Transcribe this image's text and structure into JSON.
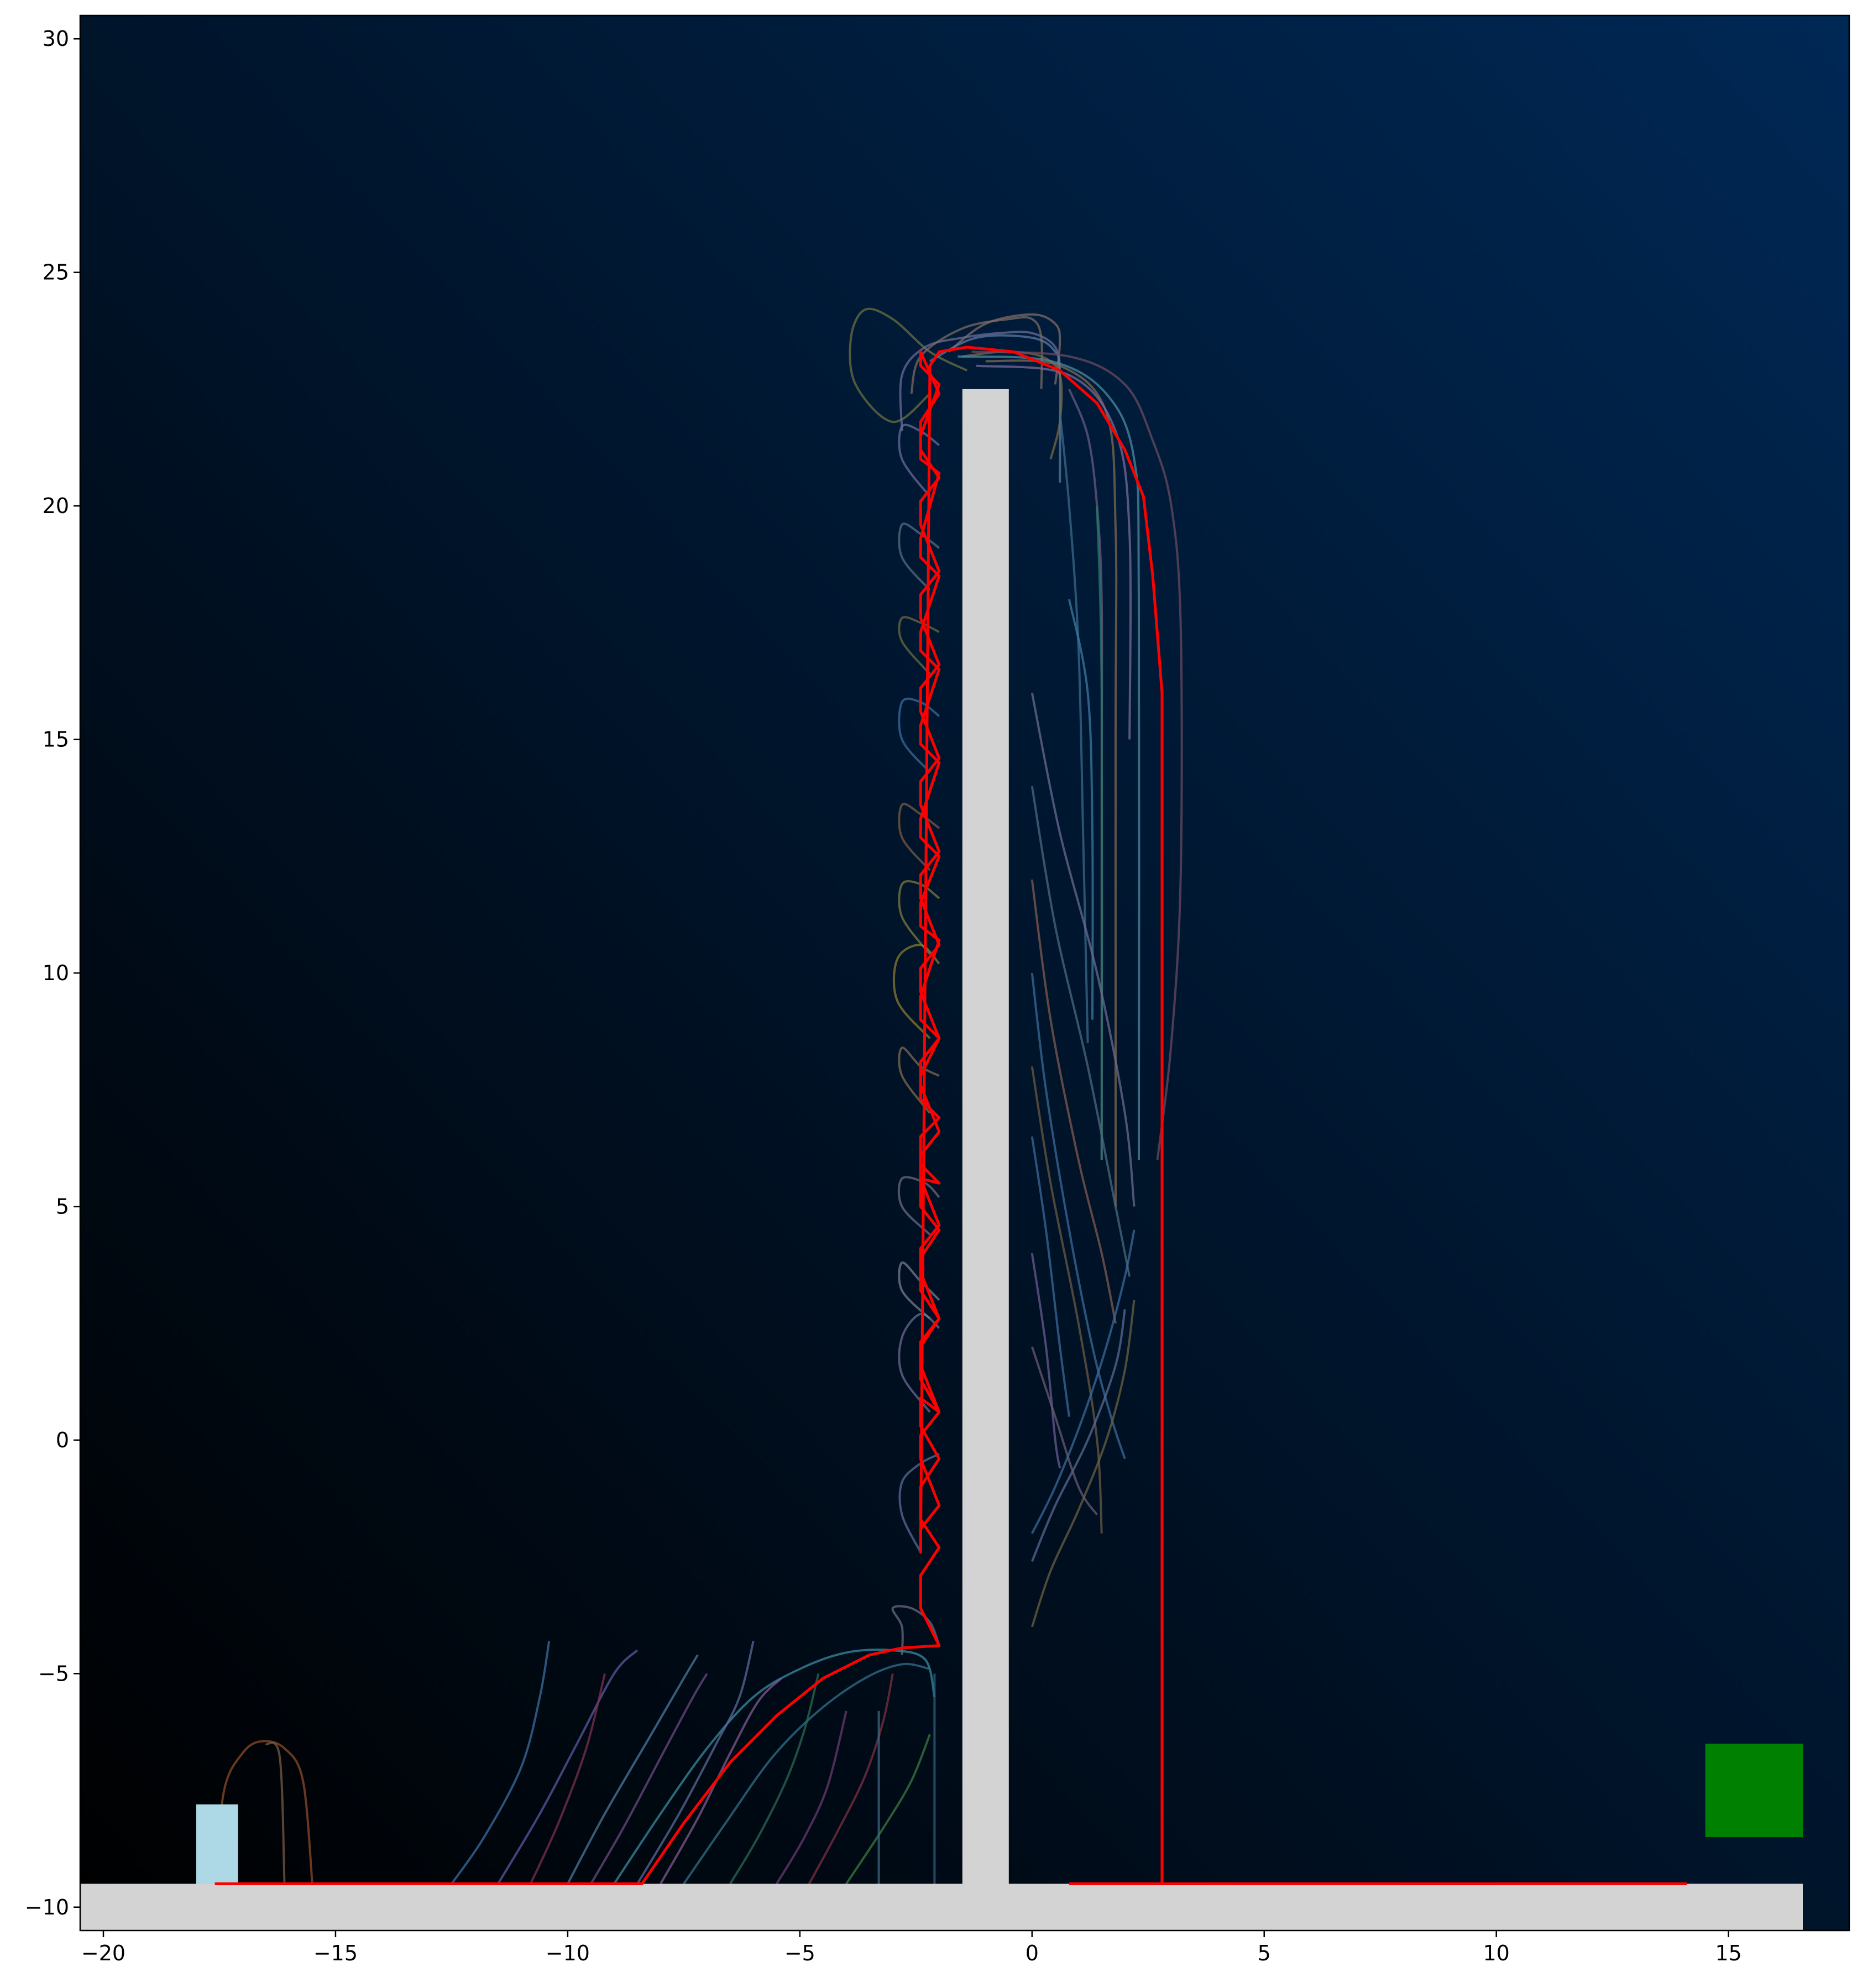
{
  "chart_data": {
    "type": "line",
    "title": "",
    "xlabel": "",
    "ylabel": "",
    "xlim": [
      -20.5,
      17.6
    ],
    "ylim": [
      -10.5,
      30.5
    ],
    "x_ticks": [
      -20,
      -15,
      -10,
      -5,
      0,
      5,
      10,
      15
    ],
    "y_ticks": [
      -10,
      -5,
      0,
      5,
      10,
      15,
      20,
      25,
      30
    ],
    "x_tick_labels": [
      "−20",
      "−15",
      "−10",
      "−5",
      "0",
      "5",
      "10",
      "15"
    ],
    "y_tick_labels": [
      "−10",
      "−5",
      "0",
      "5",
      "10",
      "15",
      "20",
      "25",
      "30"
    ],
    "background_gradient": [
      "#000000",
      "#002855"
    ],
    "obstacles": [
      {
        "name": "ground",
        "x": [
          -20.5,
          16.6
        ],
        "y": [
          -10.5,
          -9.5
        ],
        "color": "#d3d3d3"
      },
      {
        "name": "wall",
        "x": [
          -1.5,
          -0.5
        ],
        "y": [
          -9.5,
          22.5
        ],
        "color": "#d3d3d3"
      }
    ],
    "start_marker": {
      "x": [
        -18.0,
        -17.1
      ],
      "y": [
        -9.5,
        -7.8
      ],
      "color": "#add8e6"
    },
    "goal_marker": {
      "x": [
        14.5,
        16.6
      ],
      "y": [
        -8.5,
        -6.5
      ],
      "color": "#008000"
    },
    "best_path": {
      "color": "#ff0000",
      "x": [
        -17.6,
        -8.4,
        -7.5,
        -6.5,
        -5.5,
        -4.5,
        -3.5,
        -2.8,
        -2.0,
        -2.4,
        -2.4,
        -2.0,
        -2.4,
        -2.4,
        -2.0,
        -2.4,
        -2.4,
        -2.0,
        -2.4,
        -2.4,
        -2.0,
        -2.4,
        -2.4,
        -2.0,
        -2.4,
        -2.4,
        -2.0,
        -2.4,
        -2.4,
        -2.0,
        -2.4,
        -2.4,
        -2.0,
        -2.4,
        -2.4,
        -2.0,
        -2.4,
        -2.4,
        -2.0,
        -2.4,
        -2.4,
        -2.0,
        -2.4,
        -2.4,
        -2.0,
        -2.4,
        -2.4,
        -2.0,
        -2.4,
        -2.4,
        -2.0,
        -2.4,
        -2.4,
        -2.0,
        -2.4,
        -2.4,
        -2.0,
        -2.4,
        -2.4,
        -2.0,
        -2.4,
        -2.4,
        -2.0,
        -2.4,
        -2.4,
        -2.0,
        -2.4,
        -2.4,
        -2.0,
        -2.4,
        -2.4,
        -2.0,
        -2.4,
        -2.4,
        -2.0,
        -2.4,
        -2.4,
        -2.0,
        -2.4,
        -2.4,
        -2.0,
        -2.4,
        -2.4,
        -2.0,
        -2.4,
        -2.4,
        -2.0,
        -2.4,
        -2.4,
        -2.0,
        -2.4,
        -2.4,
        -2.0,
        -2.4,
        -2.4,
        -2.2,
        -2.0,
        -1.4,
        -0.4,
        0.6,
        1.4,
        2.0,
        2.4,
        2.6,
        2.8,
        2.8,
        2.8,
        0.8,
        14.1
      ],
      "y": [
        -9.5,
        -9.5,
        -8.2,
        -6.9,
        -5.9,
        -5.1,
        -4.6,
        -4.45,
        -4.4,
        -3.6,
        -2.9,
        -2.3,
        -1.7,
        -1.0,
        -0.4,
        0.3,
        0.9,
        0.6,
        1.3,
        2.0,
        2.6,
        3.2,
        3.9,
        4.5,
        5.0,
        5.6,
        5.5,
        5.9,
        6.5,
        6.9,
        7.3,
        7.8,
        8.6,
        9.0,
        9.5,
        10.7,
        11.0,
        11.5,
        12.5,
        12.9,
        13.3,
        14.5,
        14.9,
        15.3,
        16.5,
        16.9,
        17.3,
        18.5,
        18.9,
        19.3,
        20.7,
        21.0,
        21.5,
        22.6,
        23.0,
        23.3,
        22.4,
        21.8,
        21.2,
        20.6,
        20.1,
        19.6,
        18.6,
        18.1,
        17.6,
        16.6,
        16.1,
        15.6,
        14.6,
        14.1,
        13.6,
        12.6,
        12.1,
        11.6,
        10.6,
        10.1,
        9.6,
        8.6,
        8.1,
        7.6,
        6.6,
        6.1,
        5.6,
        4.6,
        4.1,
        3.6,
        2.6,
        2.1,
        1.6,
        0.6,
        0.1,
        -0.4,
        -1.4,
        -1.9,
        -2.4,
        23.0,
        23.3,
        23.4,
        23.3,
        22.9,
        22.2,
        21.2,
        20.2,
        18.5,
        16.0,
        3.0,
        -9.5,
        -9.5,
        -9.5
      ],
      "note": ""
    },
    "trajectories": [
      {
        "color": "#8b4a2a",
        "x": [
          -17.6,
          -17.4,
          -17.0,
          -16.6,
          -16.1,
          -15.7,
          -15.5
        ],
        "y": [
          -9.5,
          -7.5,
          -6.7,
          -6.45,
          -6.6,
          -7.3,
          -9.5
        ]
      },
      {
        "color": "#7a5a40",
        "x": [
          -16.5,
          -16.2,
          -16.1
        ],
        "y": [
          -6.5,
          -6.8,
          -9.5
        ]
      },
      {
        "color": "#3a6ea0",
        "x": [
          -12.5,
          -11.8,
          -11.0,
          -10.6,
          -10.4
        ],
        "y": [
          -9.5,
          -8.5,
          -7.0,
          -5.5,
          -4.3
        ]
      },
      {
        "color": "#5a5aa0",
        "x": [
          -11.5,
          -10.6,
          -9.8,
          -9.0,
          -8.5
        ],
        "y": [
          -9.5,
          -8.0,
          -6.5,
          -5.0,
          -4.5
        ]
      },
      {
        "color": "#7a3050",
        "x": [
          -10.8,
          -10.2,
          -9.6,
          -9.2
        ],
        "y": [
          -9.5,
          -8.2,
          -6.6,
          -5.0
        ]
      },
      {
        "color": "#4a7aa0",
        "x": [
          -10.0,
          -9.2,
          -8.2,
          -7.5,
          -7.2
        ],
        "y": [
          -9.5,
          -8.0,
          -6.3,
          -5.1,
          -4.6
        ]
      },
      {
        "color": "#6a4a80",
        "x": [
          -9.5,
          -8.8,
          -8.0,
          -7.3,
          -7.0
        ],
        "y": [
          -9.5,
          -8.3,
          -6.8,
          -5.5,
          -5.0
        ]
      },
      {
        "color": "#3a8aa0",
        "x": [
          -9.0,
          -8.0,
          -7.0,
          -6.0,
          -5.0,
          -4.0,
          -3.0,
          -2.3,
          -2.1
        ],
        "y": [
          -9.5,
          -8.0,
          -6.6,
          -5.5,
          -4.9,
          -4.55,
          -4.5,
          -4.7,
          -5.5
        ]
      },
      {
        "color": "#5a6a9a",
        "x": [
          -8.5,
          -7.6,
          -6.8,
          -6.3,
          -6.0
        ],
        "y": [
          -9.5,
          -8.0,
          -6.5,
          -5.5,
          -4.3
        ]
      },
      {
        "color": "#805a90",
        "x": [
          -8.0,
          -7.2,
          -6.5,
          -5.9,
          -5.4
        ],
        "y": [
          -9.5,
          -8.1,
          -6.7,
          -5.6,
          -5.1
        ]
      },
      {
        "color": "#30708a",
        "x": [
          -7.5,
          -6.6,
          -5.6,
          -4.6,
          -3.6,
          -2.8,
          -2.2
        ],
        "y": [
          -9.5,
          -8.2,
          -6.8,
          -5.8,
          -5.1,
          -4.8,
          -4.9
        ]
      },
      {
        "color": "#2a6a50",
        "x": [
          -6.5,
          -5.9,
          -5.3,
          -4.9,
          -4.6
        ],
        "y": [
          -9.5,
          -8.5,
          -7.3,
          -6.2,
          -5.0
        ]
      },
      {
        "color": "#6a3a70",
        "x": [
          -5.5,
          -4.9,
          -4.4,
          -4.0
        ],
        "y": [
          -9.5,
          -8.5,
          -7.4,
          -5.8
        ]
      },
      {
        "color": "#7a3040",
        "x": [
          -4.8,
          -4.2,
          -3.6,
          -3.2,
          -3.0
        ],
        "y": [
          -9.5,
          -8.4,
          -7.2,
          -6.0,
          -5.0
        ]
      },
      {
        "color": "#3a7a40",
        "x": [
          -4.0,
          -3.2,
          -2.6,
          -2.2
        ],
        "y": [
          -9.5,
          -8.3,
          -7.3,
          -6.3
        ]
      },
      {
        "color": "#406a80",
        "x": [
          -3.3,
          -3.3
        ],
        "y": [
          -9.5,
          -5.8
        ]
      },
      {
        "color": "#306080",
        "x": [
          -2.1,
          -2.1
        ],
        "y": [
          -9.5,
          -5.0
        ]
      },
      {
        "color": "#6a6a80",
        "x": [
          -2.8,
          -2.8,
          -3.0,
          -2.6,
          -2.2,
          -2.0
        ],
        "y": [
          -4.6,
          -4.0,
          -3.6,
          -3.6,
          -3.9,
          -4.4
        ]
      },
      {
        "color": "#5a6a9a",
        "x": [
          -2.4,
          -2.8,
          -2.8,
          -2.4,
          -2.0
        ],
        "y": [
          -2.4,
          -1.6,
          -0.9,
          -0.5,
          -0.3
        ]
      },
      {
        "color": "#6a6a90",
        "x": [
          -2.2,
          -2.8,
          -2.8,
          -2.4,
          -2.0
        ],
        "y": [
          0.6,
          1.4,
          2.2,
          2.7,
          2.4
        ]
      },
      {
        "color": "#7a7a90",
        "x": [
          -2.2,
          -2.8,
          -2.8,
          -2.4,
          -2.0
        ],
        "y": [
          2.6,
          3.2,
          3.8,
          3.4,
          3.0
        ]
      },
      {
        "color": "#6a6a80",
        "x": [
          -2.2,
          -2.8,
          -2.8,
          -2.3,
          -2.0
        ],
        "y": [
          4.4,
          5.0,
          5.6,
          5.5,
          5.2
        ]
      },
      {
        "color": "#806a50",
        "x": [
          -2.2,
          -2.8,
          -2.8,
          -2.4,
          -2.0
        ],
        "y": [
          7.0,
          7.8,
          8.4,
          8.0,
          7.8
        ]
      },
      {
        "color": "#8a7a30",
        "x": [
          -2.2,
          -2.9,
          -2.9,
          -2.4,
          -2.0
        ],
        "y": [
          8.6,
          9.4,
          10.3,
          10.6,
          10.2
        ]
      },
      {
        "color": "#7a7a40",
        "x": [
          -2.2,
          -2.8,
          -2.8,
          -2.4,
          -2.0
        ],
        "y": [
          10.4,
          11.2,
          11.9,
          11.9,
          11.6
        ]
      },
      {
        "color": "#7a5a40",
        "x": [
          -2.2,
          -2.8,
          -2.8,
          -2.4,
          -2.0
        ],
        "y": [
          12.2,
          12.9,
          13.6,
          13.4,
          13.1
        ]
      },
      {
        "color": "#3a6a9a",
        "x": [
          -2.2,
          -2.8,
          -2.8,
          -2.4,
          -2.0
        ],
        "y": [
          14.3,
          15.0,
          15.8,
          15.8,
          15.5
        ]
      },
      {
        "color": "#6a6a40",
        "x": [
          -2.2,
          -2.8,
          -2.8,
          -2.4,
          -2.0
        ],
        "y": [
          16.4,
          17.1,
          17.6,
          17.5,
          17.3
        ]
      },
      {
        "color": "#5a6a80",
        "x": [
          -2.2,
          -2.8,
          -2.8,
          -2.4,
          -2.0
        ],
        "y": [
          18.2,
          18.9,
          19.6,
          19.4,
          19.1
        ]
      },
      {
        "color": "#6a6a9a",
        "x": [
          -2.2,
          -2.8,
          -2.8,
          -2.4,
          -2.0
        ],
        "y": [
          20.2,
          21.0,
          21.7,
          21.6,
          21.3
        ]
      },
      {
        "color": "#6a7040",
        "x": [
          -2.2,
          -3.0,
          -3.8,
          -3.9,
          -3.6,
          -3.0,
          -2.2,
          -1.4
        ],
        "y": [
          22.4,
          21.8,
          22.6,
          23.6,
          24.2,
          24.0,
          23.3,
          22.9
        ]
      },
      {
        "color": "#6a6a9a",
        "x": [
          -2.8,
          -2.8,
          -2.3,
          -1.5,
          -0.7,
          0.0,
          0.5,
          0.6
        ],
        "y": [
          21.6,
          22.8,
          23.4,
          23.6,
          23.7,
          23.7,
          23.4,
          22.8
        ]
      },
      {
        "color": "#7a6a60",
        "x": [
          -2.6,
          -2.4,
          -1.5,
          -0.5,
          0.0,
          0.2,
          0.2
        ],
        "y": [
          22.4,
          23.2,
          23.8,
          24.0,
          24.0,
          23.6,
          22.5
        ]
      },
      {
        "color": "#806a6a",
        "x": [
          -1.8,
          -1.0,
          0.0,
          0.5,
          0.6,
          0.5
        ],
        "y": [
          23.3,
          23.9,
          24.1,
          23.9,
          23.5,
          22.6
        ]
      },
      {
        "color": "#5a7aa0",
        "x": [
          -2.2,
          -1.2,
          0.0,
          0.5,
          0.6,
          0.6
        ],
        "y": [
          23.1,
          23.6,
          23.6,
          23.3,
          22.8,
          20.5
        ]
      },
      {
        "color": "#7a6a40",
        "x": [
          -1.5,
          -0.6,
          0.2,
          0.6,
          0.6,
          0.4
        ],
        "y": [
          23.2,
          23.3,
          23.2,
          22.8,
          21.8,
          21.0
        ]
      },
      {
        "color": "#6a5a80",
        "x": [
          0.8,
          1.2,
          1.4,
          1.5,
          1.5,
          1.5
        ],
        "y": [
          22.5,
          21.5,
          20.0,
          18.0,
          14.0,
          6.0
        ]
      },
      {
        "color": "#3a6a8a",
        "x": [
          0.6,
          0.8,
          1.0,
          1.1,
          1.2
        ],
        "y": [
          22.0,
          20.0,
          17.0,
          13.0,
          8.5
        ]
      },
      {
        "color": "#806a50",
        "x": [
          -1.0,
          0.6,
          1.6,
          1.8,
          1.8,
          1.8
        ],
        "y": [
          23.1,
          23.0,
          22.0,
          19.5,
          15.0,
          5.0
        ]
      },
      {
        "color": "#7a6a9a",
        "x": [
          -1.2,
          0.8,
          1.8,
          2.1,
          2.1
        ],
        "y": [
          23.0,
          22.8,
          21.6,
          19.4,
          15.0
        ]
      },
      {
        "color": "#4a8aa0",
        "x": [
          -1.6,
          0.4,
          1.6,
          2.2,
          2.3,
          2.3
        ],
        "y": [
          23.2,
          23.1,
          22.4,
          21.0,
          18.0,
          6.0
        ]
      },
      {
        "color": "#6a4a60",
        "x": [
          -1.3,
          0.8,
          2.0,
          2.6,
          3.0,
          3.2,
          3.2,
          3.0,
          2.7
        ],
        "y": [
          23.3,
          23.2,
          22.6,
          21.4,
          20.0,
          17.5,
          12.0,
          8.5,
          6.0
        ]
      },
      {
        "color": "#3a7aa0",
        "x": [
          0.8,
          1.2,
          1.3,
          1.3
        ],
        "y": [
          18.0,
          16.0,
          13.0,
          9.0
        ]
      },
      {
        "color": "#2a7a6a",
        "x": [
          1.4,
          1.5,
          1.5
        ],
        "y": [
          20.0,
          16.0,
          6.0
        ]
      },
      {
        "color": "#6a5a90",
        "x": [
          0.0,
          0.3,
          0.5,
          0.6
        ],
        "y": [
          4.0,
          2.0,
          0.0,
          -0.6
        ]
      },
      {
        "color": "#3a6a9a",
        "x": [
          0.0,
          0.3,
          0.6,
          0.8
        ],
        "y": [
          6.5,
          4.5,
          2.0,
          0.5
        ]
      },
      {
        "color": "#6a5a40",
        "x": [
          0.0,
          0.4,
          1.0,
          1.4,
          1.5
        ],
        "y": [
          8.0,
          5.5,
          2.5,
          0.0,
          -2.0
        ]
      },
      {
        "color": "#3a6a9a",
        "x": [
          0.0,
          0.3,
          0.8,
          1.3,
          1.7,
          2.0
        ],
        "y": [
          10.0,
          7.5,
          4.5,
          2.0,
          0.5,
          -0.4
        ]
      },
      {
        "color": "#805a50",
        "x": [
          0.0,
          0.4,
          1.0,
          1.5,
          1.8
        ],
        "y": [
          12.0,
          9.0,
          6.0,
          4.0,
          2.5
        ]
      },
      {
        "color": "#4a6a80",
        "x": [
          0.0,
          0.5,
          1.2,
          1.8,
          2.1
        ],
        "y": [
          14.0,
          11.0,
          8.0,
          5.0,
          3.5
        ]
      },
      {
        "color": "#6a6a90",
        "x": [
          0.0,
          0.6,
          1.4,
          2.0,
          2.2
        ],
        "y": [
          16.0,
          13.0,
          10.0,
          7.0,
          5.0
        ]
      },
      {
        "color": "#3a6a9a",
        "x": [
          0.0,
          0.5,
          1.1,
          1.6,
          2.0,
          2.2
        ],
        "y": [
          -2.0,
          -1.0,
          0.5,
          2.0,
          3.5,
          4.5
        ]
      },
      {
        "color": "#6a6040",
        "x": [
          0.0,
          0.4,
          1.0,
          1.6,
          2.0,
          2.2
        ],
        "y": [
          -4.0,
          -2.8,
          -1.5,
          0.0,
          1.5,
          3.0
        ]
      },
      {
        "color": "#5a6a90",
        "x": [
          0.0,
          0.5,
          1.2,
          1.8,
          2.0
        ],
        "y": [
          -2.6,
          -1.4,
          0.0,
          1.6,
          2.8
        ]
      },
      {
        "color": "#6a5a70",
        "x": [
          0.0,
          0.5,
          1.0,
          1.4
        ],
        "y": [
          2.0,
          0.5,
          -1.0,
          -1.6
        ]
      }
    ]
  }
}
